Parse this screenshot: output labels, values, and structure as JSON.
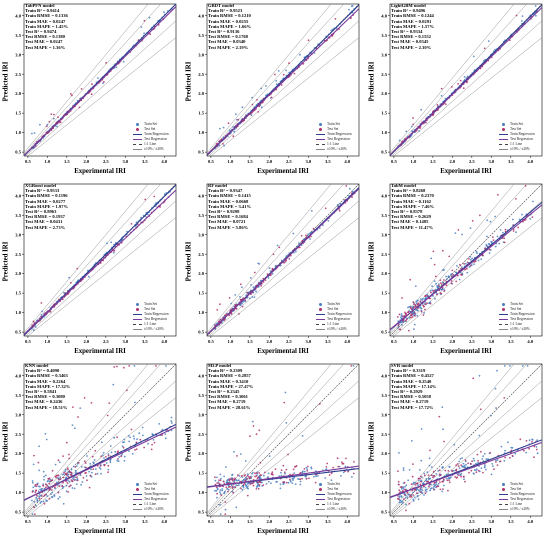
{
  "chart_data": [
    {
      "type": "scatter",
      "panel": "TabPFN",
      "stats": [
        "TabPFN model",
        "Train R² = 0.9414",
        "Train RMSE = 0.1336",
        "Train MAE = 0.0247",
        "Train MAPE = 1.45%",
        "Test R² = 0.9474",
        "Test RMSE = 0.1380",
        "Test MAE = 0.0247",
        "Test MAPE = 1.36%"
      ],
      "xlabel": "Experimental IRI",
      "ylabel": "Predicted IRI",
      "xlim": [
        0.4,
        4.3
      ],
      "ylim": [
        0.4,
        4.3
      ],
      "xticks": [
        "0.5",
        "1.0",
        "1.5",
        "2.0",
        "2.5",
        "3.0",
        "3.5",
        "4.0"
      ],
      "yticks": [
        "0.5",
        "1.0",
        "1.5",
        "2.0",
        "2.5",
        "3.0",
        "3.5",
        "4.0"
      ],
      "train_fit": [
        1.0,
        0.0
      ],
      "test_fit": [
        0.98,
        0.02
      ],
      "noise": 0.03,
      "spread": 0.1,
      "legend": [
        "Train Set",
        "Test Set",
        "Train Regression",
        "Test Regression",
        "1:1 Line",
        "±10% / ±20%"
      ]
    },
    {
      "type": "scatter",
      "panel": "GBDT",
      "stats": [
        "GBDT model",
        "Train R² = 0.9523",
        "Train RMSE = 0.1210",
        "Train MAE = 0.0255",
        "Train MAPE = 1.66%",
        "Test R² = 0.9136",
        "Test RMSE = 0.1768",
        "Test MAE = 0.0340",
        "Test MAPE = 2.19%"
      ],
      "xlabel": "Experimental IRI",
      "ylabel": "Predicted IRI",
      "xlim": [
        0.4,
        4.3
      ],
      "ylim": [
        0.4,
        4.3
      ],
      "xticks": [
        "0.5",
        "1.0",
        "1.5",
        "2.0",
        "2.5",
        "3.0",
        "3.5",
        "4.0"
      ],
      "yticks": [
        "0.5",
        "1.0",
        "1.5",
        "2.0",
        "2.5",
        "3.0",
        "3.5",
        "4.0"
      ],
      "train_fit": [
        0.99,
        0.02
      ],
      "test_fit": [
        0.96,
        0.05
      ],
      "noise": 0.04,
      "spread": 0.1,
      "legend": [
        "Train Set",
        "Test Set",
        "Train Regression",
        "Test Regression",
        "1:1 Line",
        "±10% / ±20%"
      ]
    },
    {
      "type": "scatter",
      "panel": "LightGBM",
      "stats": [
        "LightGBM model",
        "Train R² = 0.9496",
        "Train RMSE = 0.1244",
        "Train MAE = 0.0291",
        "Train MAPE = 1.57%",
        "Test R² = 0.9334",
        "Test RMSE = 0.1552",
        "Test MAE = 0.0345",
        "Test MAPE = 2.30%"
      ],
      "xlabel": "Experimental IRI",
      "ylabel": "Predicted IRI",
      "xlim": [
        0.4,
        4.3
      ],
      "ylim": [
        0.4,
        4.3
      ],
      "xticks": [
        "0.5",
        "1.0",
        "1.5",
        "2.0",
        "2.5",
        "3.0",
        "3.5",
        "4.0"
      ],
      "yticks": [
        "0.5",
        "1.0",
        "1.5",
        "2.0",
        "2.5",
        "3.0",
        "3.5",
        "4.0"
      ],
      "train_fit": [
        0.99,
        0.02
      ],
      "test_fit": [
        0.97,
        0.04
      ],
      "noise": 0.04,
      "spread": 0.1,
      "legend": [
        "Train Set",
        "Test Set",
        "Train Regression",
        "Test Regression",
        "1:1 Line",
        "±10% / ±20%"
      ]
    },
    {
      "type": "scatter",
      "panel": "XGBoost",
      "stats": [
        "XGBoost model",
        "Train R² = 0.9533",
        "Train RMSE = 0.1196",
        "Train MAE = 0.0277",
        "Train MAPE = 1.97%",
        "Test R² = 0.8963",
        "Test RMSE = 0.1937",
        "Test MAE = 0.0431",
        "Test MAPE = 2.73%"
      ],
      "xlabel": "Experimental IRI",
      "ylabel": "Predicted IRI",
      "xlim": [
        0.4,
        4.3
      ],
      "ylim": [
        0.4,
        4.3
      ],
      "xticks": [
        "0.5",
        "1.0",
        "1.5",
        "2.0",
        "2.5",
        "3.0",
        "3.5",
        "4.0"
      ],
      "yticks": [
        "0.5",
        "1.0",
        "1.5",
        "2.0",
        "2.5",
        "3.0",
        "3.5",
        "4.0"
      ],
      "train_fit": [
        0.99,
        0.02
      ],
      "test_fit": [
        0.95,
        0.06
      ],
      "noise": 0.04,
      "spread": 0.1,
      "legend": [
        "Train Set",
        "Test Set",
        "Train Regression",
        "Test Regression",
        "1:1 Line",
        "±10% / ±20%"
      ]
    },
    {
      "type": "scatter",
      "panel": "RF",
      "stats": [
        "RF model",
        "Train R² = 0.9347",
        "Train RMSE = 0.1415",
        "Train MAE = 0.0668",
        "Train MAPE = 3.41%",
        "Test R² = 0.9298",
        "Test RMSE = 0.1684",
        "Test MAE = 0.0721",
        "Test MAPE = 5.86%"
      ],
      "xlabel": "Experimental IRI",
      "ylabel": "Predicted IRI",
      "xlim": [
        0.4,
        4.3
      ],
      "ylim": [
        0.4,
        4.3
      ],
      "xticks": [
        "0.5",
        "1.0",
        "1.5",
        "2.0",
        "2.5",
        "3.0",
        "3.5",
        "4.0"
      ],
      "yticks": [
        "0.5",
        "1.0",
        "1.5",
        "2.0",
        "2.5",
        "3.0",
        "3.5",
        "4.0"
      ],
      "train_fit": [
        0.97,
        0.04
      ],
      "test_fit": [
        0.96,
        0.05
      ],
      "noise": 0.07,
      "spread": 0.14,
      "legend": [
        "Train Set",
        "Test Set",
        "Train Regression",
        "Test Regression",
        "1:1 Line",
        "±10% / ±20%"
      ]
    },
    {
      "type": "scatter",
      "panel": "TabM",
      "stats": [
        "TabM model",
        "Train R² = 0.8268",
        "Train RMSE = 0.2370",
        "Train MAE = 0.1162",
        "Train MAPE = 7.46%",
        "Test R² = 0.8378",
        "Test RMSE = 0.2629",
        "Test MAE = 0.1485",
        "Test MAPE = 11.47%"
      ],
      "xlabel": "Experimental IRI",
      "ylabel": "Predicted IRI",
      "xlim": [
        0.4,
        4.3
      ],
      "ylim": [
        0.4,
        4.3
      ],
      "xticks": [
        "0.5",
        "1.0",
        "1.5",
        "2.0",
        "2.5",
        "3.0",
        "3.5",
        "4.0"
      ],
      "yticks": [
        "0.5",
        "1.0",
        "1.5",
        "2.0",
        "2.5",
        "3.0",
        "3.5",
        "4.0"
      ],
      "train_fit": [
        0.84,
        0.22
      ],
      "test_fit": [
        0.82,
        0.24
      ],
      "noise": 0.2,
      "spread": 0.26,
      "legend": [
        "Train Set",
        "Test Set",
        "Train Regression",
        "Test Regression",
        "1:1 Line",
        "±10% / ±20%"
      ]
    },
    {
      "type": "scatter",
      "panel": "KNN",
      "stats": [
        "KNN model",
        "Train R² = 0.4090",
        "Train RMSE = 0.3463",
        "Train MAE = 0.2264",
        "Train MAPE = 17.32%",
        "Test R² = 0.5841",
        "Test RMSE = 0.3080",
        "Test MAE = 0.2436",
        "Test MAPE = 18.51%"
      ],
      "xlabel": "Experimental IRI",
      "ylabel": "Predicted IRI",
      "xlim": [
        0.4,
        4.3
      ],
      "ylim": [
        0.4,
        4.3
      ],
      "xticks": [
        "0.5",
        "1.0",
        "1.5",
        "2.0",
        "2.5",
        "3.0",
        "3.5",
        "4.0"
      ],
      "yticks": [
        "0.5",
        "1.0",
        "1.5",
        "2.0",
        "2.5",
        "3.0",
        "3.5",
        "4.0"
      ],
      "train_fit": [
        0.5,
        0.6
      ],
      "test_fit": [
        0.48,
        0.62
      ],
      "noise": 0.35,
      "spread": 0.4,
      "legend": [
        "Train Set",
        "Test Set",
        "Train Regression",
        "Test Regression",
        "1:1 Line",
        "±10% / ±20%"
      ]
    },
    {
      "type": "scatter",
      "panel": "MLP",
      "stats": [
        "MLP model",
        "Train R² = 0.2309",
        "Train RMSE = 0.2857",
        "Train MAE = 0.3410",
        "Train MAPE = 27.47%",
        "Test R² = 0.2345",
        "Test RMSE = 0.3061",
        "Test MAE = 0.2719",
        "Test MAPE = 28.61%"
      ],
      "xlabel": "Experimental IRI",
      "ylabel": "Predicted IRI",
      "xlim": [
        0.4,
        4.3
      ],
      "ylim": [
        0.4,
        4.3
      ],
      "xticks": [
        "0.5",
        "1.0",
        "1.5",
        "2.0",
        "2.5",
        "3.0",
        "3.5",
        "4.0"
      ],
      "yticks": [
        "0.5",
        "1.0",
        "1.5",
        "2.0",
        "2.5",
        "3.0",
        "3.5",
        "4.0"
      ],
      "train_fit": [
        0.12,
        1.1
      ],
      "test_fit": [
        0.14,
        1.08
      ],
      "noise": 0.22,
      "spread": 0.3,
      "legend": [
        "Train Set",
        "Test Set",
        "Train Regression",
        "Test Regression",
        "1:1 Line",
        "±10% / ±20%"
      ]
    },
    {
      "type": "scatter",
      "panel": "SVR",
      "stats": [
        "SVR model",
        "Train R² = 0.3319",
        "Train RMSE = 0.4527",
        "Train MAE = 0.2540",
        "Train MAPE = 17.14%",
        "Test R² = 0.2929",
        "Test RMSE = 0.5058",
        "Test MAE = 0.2719",
        "Test MAPE = 17.72%"
      ],
      "xlabel": "Experimental IRI",
      "ylabel": "Predicted IRI",
      "xlim": [
        0.4,
        4.3
      ],
      "ylim": [
        0.4,
        4.3
      ],
      "xticks": [
        "0.5",
        "1.0",
        "1.5",
        "2.0",
        "2.5",
        "3.0",
        "3.5",
        "4.0"
      ],
      "yticks": [
        "0.5",
        "1.0",
        "1.5",
        "2.0",
        "2.5",
        "3.0",
        "3.5",
        "4.0"
      ],
      "train_fit": [
        0.38,
        0.72
      ],
      "test_fit": [
        0.36,
        0.74
      ],
      "noise": 0.3,
      "spread": 0.36,
      "legend": [
        "Train Set",
        "Test Set",
        "Train Regression",
        "Test Regression",
        "1:1 Line",
        "±10% / ±20%"
      ]
    }
  ],
  "colors": {
    "train": "#4a7fc1",
    "test": "#b0306a",
    "train_line": "#2f3f8f",
    "test_line": "#7a3a9a",
    "identity": "#444444",
    "band": "#888888"
  }
}
